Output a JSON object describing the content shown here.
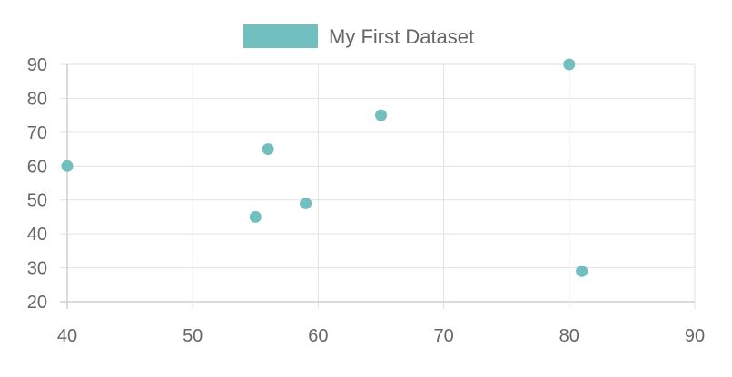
{
  "chart_data": {
    "type": "scatter",
    "series": [
      {
        "name": "My First Dataset",
        "color": "#72BFBF",
        "points": [
          {
            "x": 40,
            "y": 60
          },
          {
            "x": 56,
            "y": 65
          },
          {
            "x": 55,
            "y": 45
          },
          {
            "x": 59,
            "y": 49
          },
          {
            "x": 65,
            "y": 75
          },
          {
            "x": 80,
            "y": 90
          },
          {
            "x": 81,
            "y": 29
          }
        ]
      }
    ],
    "xlim": [
      40,
      90
    ],
    "ylim": [
      20,
      90
    ],
    "xticks": [
      "40",
      "50",
      "60",
      "70",
      "80",
      "90"
    ],
    "yticks": [
      "90",
      "80",
      "70",
      "60",
      "50",
      "40",
      "30",
      "20"
    ],
    "grid": true,
    "legend_position": "top-center"
  }
}
